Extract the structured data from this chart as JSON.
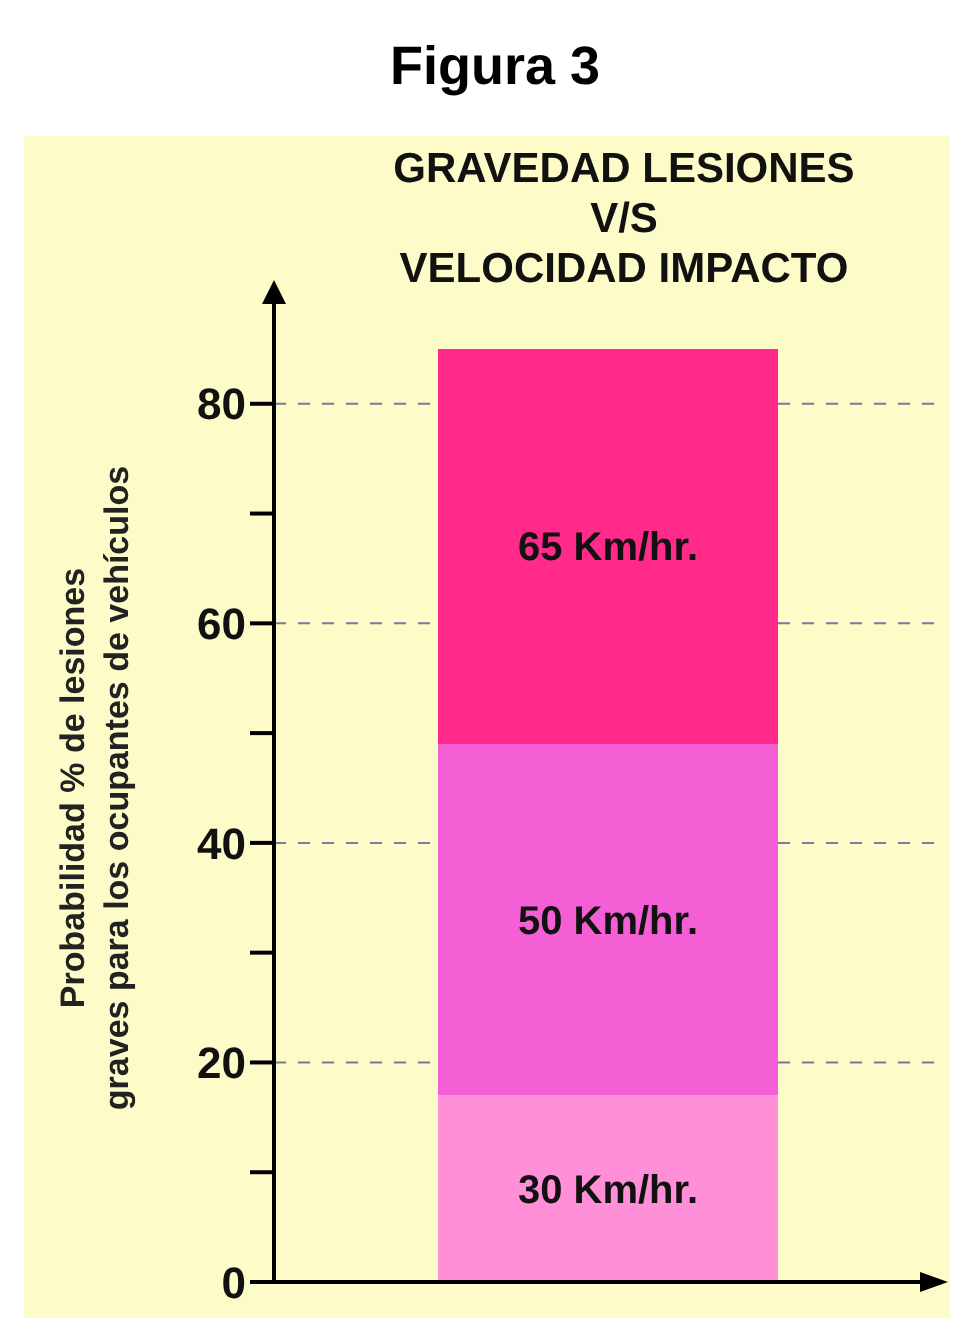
{
  "chart_data": {
    "type": "bar",
    "title": "Figura 3",
    "subtitle": "GRAVEDAD LESIONES\nV/S\nVELOCIDAD IMPACTO",
    "ylabel": "Probabilidad % de lesiones\ngraves para los ocupantes de vehículos",
    "categories": [
      null
    ],
    "stacked": true,
    "series": [
      {
        "name": "30 Km/hr.",
        "color": "#ff8fd6",
        "values": [
          17
        ]
      },
      {
        "name": "50 Km/hr.",
        "color": "#f55fd6",
        "values": [
          32
        ]
      },
      {
        "name": "65 Km/hr.",
        "color": "#ff2a8a",
        "values": [
          36
        ]
      }
    ],
    "ylim": [
      0,
      90
    ],
    "yticks": [
      0,
      {
        "value": 10,
        "label": null
      },
      20,
      {
        "value": 30,
        "label": null
      },
      40,
      {
        "value": 50,
        "label": null
      },
      60,
      {
        "value": 70,
        "label": null
      },
      80
    ],
    "grid": "y",
    "tick_labels": "y"
  }
}
